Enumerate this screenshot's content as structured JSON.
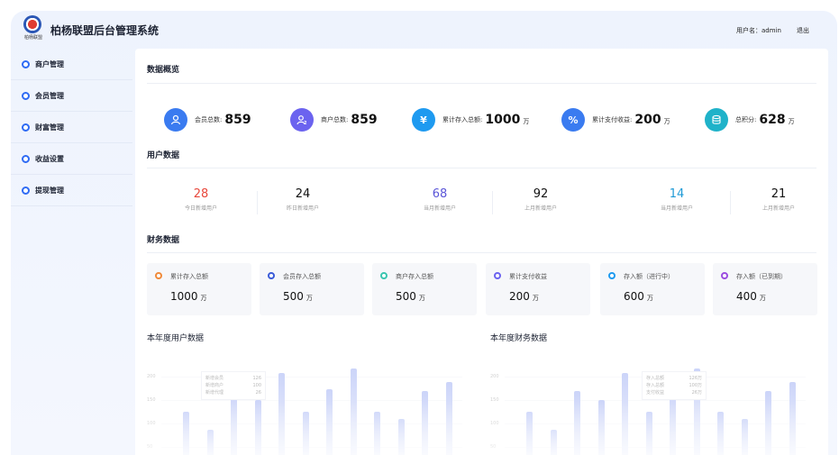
{
  "header": {
    "logo_text": "柏杨联盟",
    "title": "柏杨联盟后台管理系统",
    "user_label": "用户名：admin",
    "logout": "退出"
  },
  "sidebar": {
    "items": [
      {
        "label": "商户管理"
      },
      {
        "label": "会员管理"
      },
      {
        "label": "财富管理"
      },
      {
        "label": "收益设置"
      },
      {
        "label": "提现管理"
      }
    ]
  },
  "overview": {
    "title": "数据概览",
    "items": [
      {
        "label": "会员总数:",
        "value": "859",
        "unit": "",
        "color": "#3a7bf0",
        "icon": "user-icon"
      },
      {
        "label": "商户总数:",
        "value": "859",
        "unit": "",
        "color": "#6b63ef",
        "icon": "merchant-icon"
      },
      {
        "label": "累计存入总额:",
        "value": "1000",
        "unit": "万",
        "color": "#1e9af0",
        "icon": "yen-icon"
      },
      {
        "label": "累计支付收益:",
        "value": "200",
        "unit": "万",
        "color": "#3a7bf0",
        "icon": "percent-bag-icon"
      },
      {
        "label": "总积分:",
        "value": "628",
        "unit": "万",
        "color": "#1fb2c9",
        "icon": "coins-icon"
      }
    ]
  },
  "user_data": {
    "title": "用户数据",
    "items": [
      {
        "value": "28",
        "label": "今日新增用户",
        "color": "#e8483c"
      },
      {
        "value": "24",
        "label": "昨日新增用户",
        "color": "#222222"
      },
      {
        "value": "68",
        "label": "当月新增用户",
        "color": "#5b56d8"
      },
      {
        "value": "92",
        "label": "上月新增用户",
        "color": "#222222"
      },
      {
        "value": "14",
        "label": "当月新增用户",
        "color": "#1e9ad6"
      },
      {
        "value": "21",
        "label": "上月新增用户",
        "color": "#222222"
      }
    ]
  },
  "finance": {
    "title": "财务数据",
    "items": [
      {
        "label": "累计存入总额",
        "value": "1000",
        "unit": "万",
        "color": "#f08a3a"
      },
      {
        "label": "会员存入总额",
        "value": "500",
        "unit": "万",
        "color": "#3a5bd8"
      },
      {
        "label": "商户存入总额",
        "value": "500",
        "unit": "万",
        "color": "#3ac5b0"
      },
      {
        "label": "累计支付收益",
        "value": "200",
        "unit": "万",
        "color": "#6b63ef"
      },
      {
        "label": "存入额（进行中）",
        "value": "600",
        "unit": "万",
        "color": "#1e9af0"
      },
      {
        "label": "存入额（已到期）",
        "value": "400",
        "unit": "万",
        "color": "#9b4de0"
      }
    ]
  },
  "charts": {
    "user_title": "本年度用户数据",
    "finance_title": "本年度财务数据"
  },
  "chart_data": [
    {
      "type": "bar",
      "title": "本年度用户数据",
      "y_ticks": [
        "200",
        "150",
        "100",
        "50"
      ],
      "ylim": [
        0,
        200
      ],
      "values": [
        95,
        55,
        140,
        120,
        180,
        95,
        145,
        190,
        95,
        80,
        140,
        160
      ],
      "tooltip": [
        {
          "label": "新增会员",
          "value": "126"
        },
        {
          "label": "新增商户",
          "value": "100"
        },
        {
          "label": "新增代理",
          "value": "26"
        }
      ]
    },
    {
      "type": "bar",
      "title": "本年度财务数据",
      "y_ticks": [
        "200",
        "150",
        "100",
        "50"
      ],
      "ylim": [
        0,
        200
      ],
      "values": [
        95,
        55,
        140,
        120,
        180,
        95,
        145,
        190,
        95,
        80,
        140,
        160
      ],
      "tooltip": [
        {
          "label": "存入总额",
          "value": "126万"
        },
        {
          "label": "存入总额",
          "value": "100万"
        },
        {
          "label": "支付收益",
          "value": "26万"
        }
      ]
    }
  ]
}
